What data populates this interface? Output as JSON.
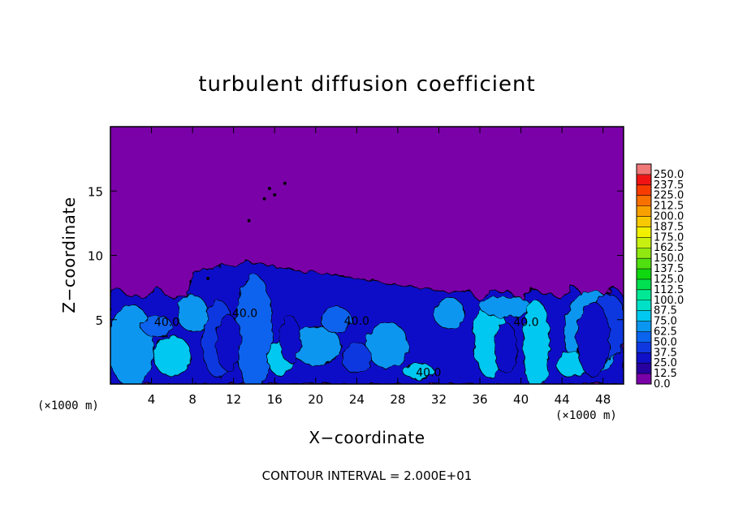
{
  "chart_data": {
    "type": "heatmap",
    "title": "turbulent diffusion coefficient",
    "xlabel": "X−coordinate",
    "ylabel": "Z−coordinate",
    "x_unit_left": "(×1000 m)",
    "x_unit_right": "(×1000 m)",
    "xlim": [
      0,
      50
    ],
    "ylim": [
      0,
      20
    ],
    "xticks": [
      4,
      8,
      12,
      16,
      20,
      24,
      28,
      32,
      36,
      40,
      44,
      48
    ],
    "yticks": [
      5,
      10,
      15
    ],
    "colorbar_levels": [
      "0.0",
      "12.5",
      "25.0",
      "37.5",
      "50.0",
      "62.5",
      "75.0",
      "87.5",
      "100.0",
      "112.5",
      "125.0",
      "137.5",
      "150.0",
      "162.5",
      "175.0",
      "187.5",
      "200.0",
      "212.5",
      "225.0",
      "237.5",
      "250.0"
    ],
    "colorbar_colors": [
      "#7a00a8",
      "#2800a0",
      "#1010c8",
      "#1038e0",
      "#0a64ee",
      "#0a96f0",
      "#00c8f0",
      "#00e0c8",
      "#00e896",
      "#00e050",
      "#10d810",
      "#50e010",
      "#90e810",
      "#c8f010",
      "#f0f000",
      "#f8c800",
      "#f8a000",
      "#f87000",
      "#f83c00",
      "#f01414",
      "#f07878"
    ],
    "contour_labels": [
      "40.0",
      "40.0",
      "40.0",
      "40.0",
      "40.0"
    ],
    "turbulent_layer_top_z": 7,
    "plume_peak": {
      "x": 13.5,
      "z": 9.5
    },
    "footer": "CONTOUR INTERVAL = 2.000E+01"
  }
}
